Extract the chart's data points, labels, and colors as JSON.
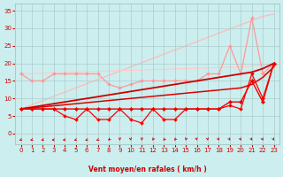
{
  "x": [
    0,
    1,
    2,
    3,
    4,
    5,
    6,
    7,
    8,
    9,
    10,
    11,
    12,
    13,
    14,
    15,
    16,
    17,
    18,
    19,
    20,
    21,
    22,
    23
  ],
  "lines": [
    {
      "comment": "lightest pink upper diagonal - from ~7 to ~34",
      "y": [
        7,
        8.2,
        9.4,
        10.6,
        11.8,
        13,
        14.2,
        15.4,
        16.6,
        17.8,
        19,
        20.2,
        21.4,
        22.6,
        23.8,
        25,
        26.2,
        27.4,
        28.6,
        29.8,
        31,
        32.2,
        33.4,
        34
      ],
      "color": "#ffbbbb",
      "lw": 0.9,
      "marker": null,
      "ms": 0,
      "zorder": 1
    },
    {
      "comment": "second pink upper - from ~17 at x=0 to ~20 at x=23 (nearly flat then rise)",
      "y": [
        17,
        17.1,
        17.2,
        17.3,
        17.4,
        17.5,
        17.6,
        17.7,
        17.8,
        17.9,
        18,
        18.1,
        18.2,
        18.3,
        18.4,
        18.5,
        18.6,
        18.7,
        18.8,
        18.9,
        19,
        19.2,
        19.5,
        20
      ],
      "color": "#ffcccc",
      "lw": 0.9,
      "marker": null,
      "ms": 0,
      "zorder": 1
    },
    {
      "comment": "medium pink line with markers - zigzag around 15-17, with spike to 25 at x=19, then spike to 33 at x=21",
      "y": [
        17,
        15,
        15,
        17,
        17,
        17,
        17,
        17,
        14,
        13,
        14,
        15,
        15,
        15,
        15,
        15,
        15,
        17,
        17,
        25,
        17,
        33,
        17,
        20
      ],
      "color": "#ff9999",
      "lw": 0.9,
      "marker": "D",
      "ms": 2.0,
      "zorder": 2
    },
    {
      "comment": "dark red upper diagonal line (no marker)",
      "y": [
        7,
        7.5,
        8,
        8.5,
        9,
        9.5,
        10,
        10.5,
        11,
        11.5,
        12,
        12.5,
        13,
        13.5,
        14,
        14.5,
        15,
        15.5,
        16,
        16.5,
        17,
        17.5,
        18.5,
        20
      ],
      "color": "#cc0000",
      "lw": 1.3,
      "marker": null,
      "ms": 0,
      "zorder": 5
    },
    {
      "comment": "dark red second diagonal line (no marker) slightly below",
      "y": [
        7,
        7.3,
        7.6,
        7.9,
        8.2,
        8.5,
        8.8,
        9.1,
        9.4,
        9.7,
        10,
        10.3,
        10.6,
        10.9,
        11.2,
        11.5,
        11.8,
        12.1,
        12.4,
        12.7,
        13,
        14,
        16,
        19
      ],
      "color": "#dd0000",
      "lw": 1.1,
      "marker": null,
      "ms": 0,
      "zorder": 4
    },
    {
      "comment": "bright red with diamond markers - bottom zigzag line",
      "y": [
        7,
        7,
        7,
        7,
        5,
        4,
        7,
        4,
        4,
        7,
        4,
        3,
        7,
        4,
        4,
        7,
        7,
        7,
        7,
        8,
        7,
        17,
        10,
        20
      ],
      "color": "#ff0000",
      "lw": 0.9,
      "marker": "D",
      "ms": 2.0,
      "zorder": 6
    },
    {
      "comment": "medium red with markers - slightly above bottom",
      "y": [
        7,
        7,
        7,
        7,
        7,
        7,
        7,
        7,
        7,
        7,
        7,
        7,
        7,
        7,
        7,
        7,
        7,
        7,
        7,
        9,
        9,
        15,
        9,
        20
      ],
      "color": "#ee0000",
      "lw": 1.0,
      "marker": "D",
      "ms": 2.2,
      "zorder": 7
    }
  ],
  "xlabel": "Vent moyen/en rafales ( km/h )",
  "ylim": [
    -3,
    37
  ],
  "xlim": [
    -0.5,
    23.5
  ],
  "yticks": [
    0,
    5,
    10,
    15,
    20,
    25,
    30,
    35
  ],
  "xticks": [
    0,
    1,
    2,
    3,
    4,
    5,
    6,
    7,
    8,
    9,
    10,
    11,
    12,
    13,
    14,
    15,
    16,
    17,
    18,
    19,
    20,
    21,
    22,
    23
  ],
  "bg_color": "#cceeee",
  "grid_color": "#aacccc",
  "text_color": "#cc0000",
  "arrow_color": "#cc0000",
  "wind_arrows_x": [
    0,
    1,
    2,
    3,
    4,
    5,
    6,
    7,
    8,
    9,
    10,
    11,
    12,
    13,
    14,
    15,
    16,
    17,
    18,
    19,
    20,
    21,
    22,
    23
  ],
  "wind_angles": [
    225,
    225,
    220,
    200,
    205,
    215,
    220,
    230,
    250,
    270,
    275,
    270,
    260,
    250,
    255,
    265,
    275,
    275,
    280,
    280,
    280,
    280,
    280,
    280
  ]
}
